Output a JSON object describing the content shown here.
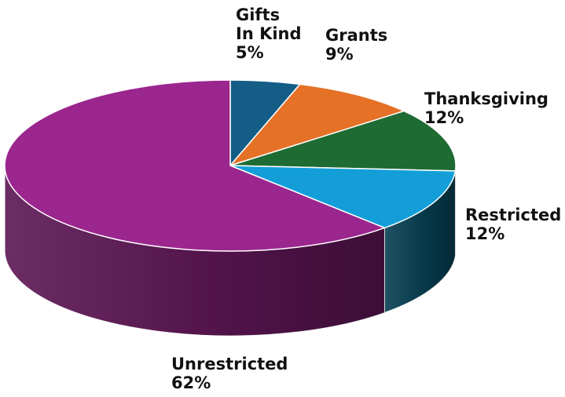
{
  "chart_data": {
    "type": "pie",
    "title": "",
    "legend": "none",
    "slices": [
      {
        "label_lines": [
          "Gifts",
          "In Kind"
        ],
        "percent_label": "5%",
        "value": 5,
        "color": "#135d86",
        "side_color": "#0c3a54"
      },
      {
        "label_lines": [
          "Grants"
        ],
        "percent_label": "9%",
        "value": 9,
        "color": "#e57127",
        "side_color": "#a24c14"
      },
      {
        "label_lines": [
          "Thanksgiving"
        ],
        "percent_label": "12%",
        "value": 12,
        "color": "#1e6c33",
        "side_color": "#124420"
      },
      {
        "label_lines": [
          "Restricted"
        ],
        "percent_label": "12%",
        "value": 12,
        "color": "#139ed8",
        "side_color": "#073f52"
      },
      {
        "label_lines": [
          "Unrestricted"
        ],
        "percent_label": "62%",
        "value": 62,
        "color": "#9b268e",
        "side_color": "#5c1553"
      }
    ]
  }
}
